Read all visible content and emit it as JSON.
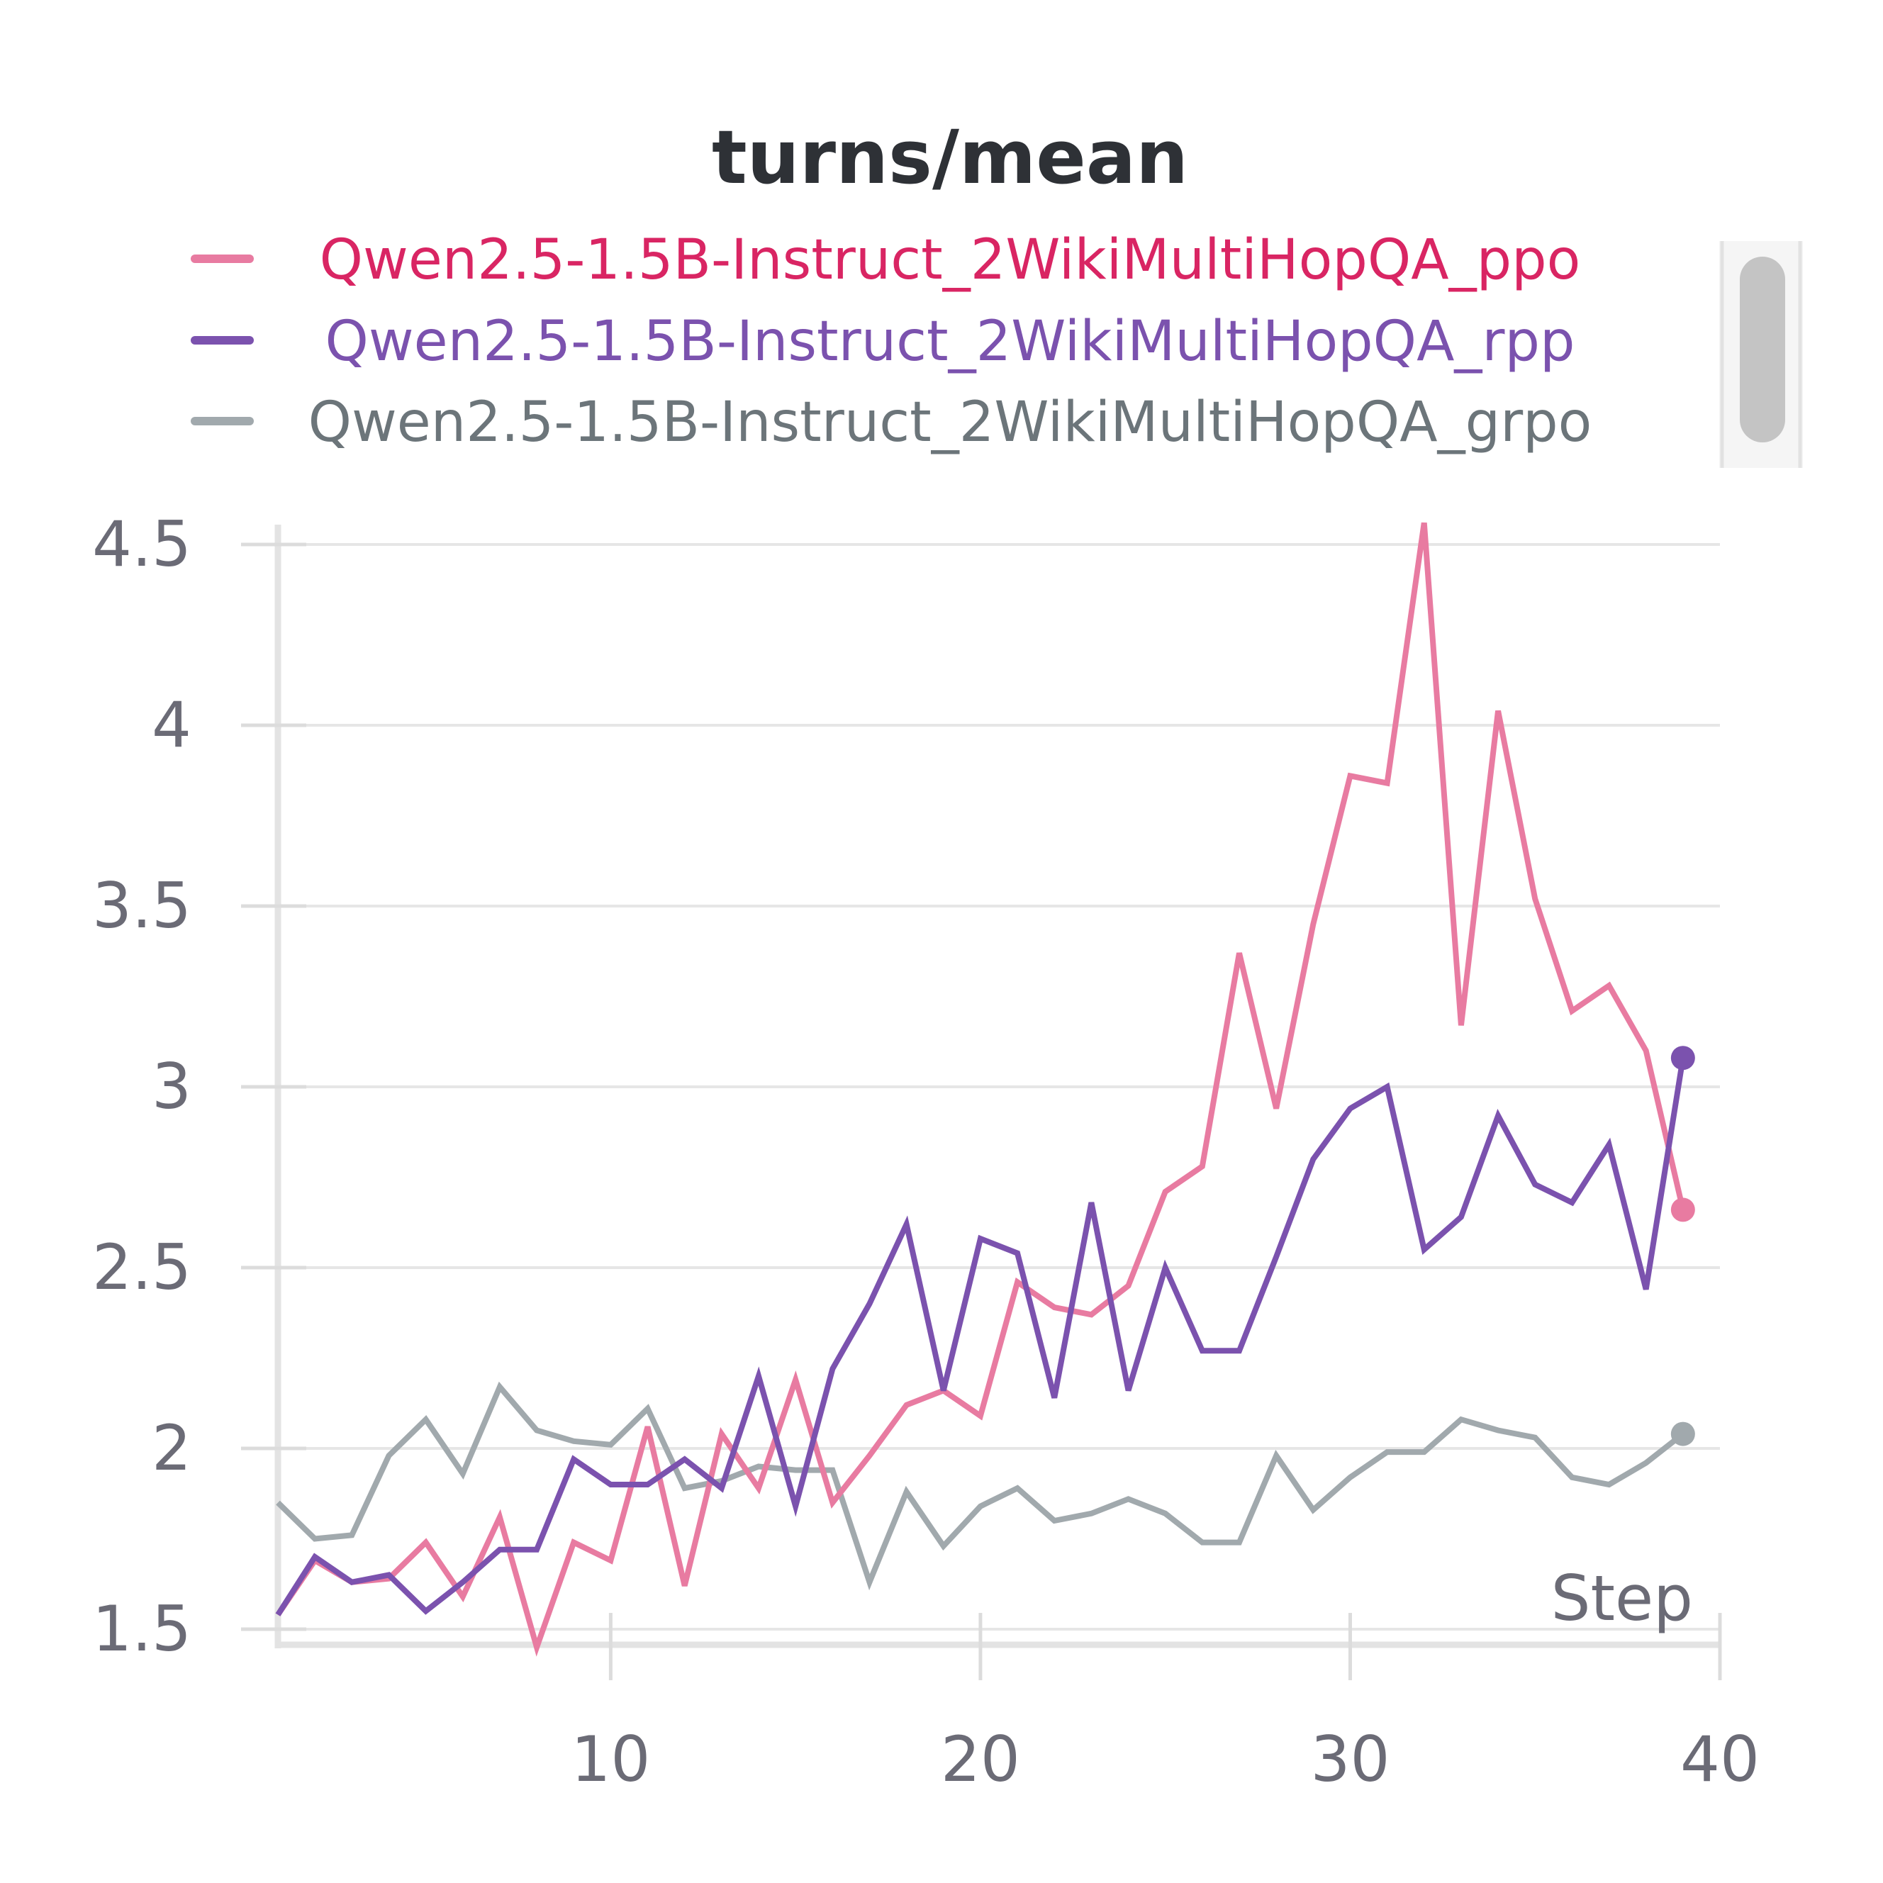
{
  "chart_data": {
    "type": "line",
    "title": "turns/mean",
    "xlabel": "Step",
    "ylabel": "",
    "xlim": [
      1,
      40
    ],
    "ylim": [
      1.5,
      4.5
    ],
    "xticks": [
      10,
      20,
      30,
      40
    ],
    "yticks": [
      1.5,
      2,
      2.5,
      3,
      3.5,
      4,
      4.5
    ],
    "ytick_labels": [
      "1.5",
      "2",
      "2.5",
      "3",
      "3.5",
      "4",
      "4.5"
    ],
    "xtick_labels": [
      "10",
      "20",
      "30",
      "40"
    ],
    "grid": true,
    "legend_position": "top",
    "x": [
      1,
      2,
      3,
      4,
      5,
      6,
      7,
      8,
      9,
      10,
      11,
      12,
      13,
      14,
      15,
      16,
      17,
      18,
      19,
      20,
      21,
      22,
      23,
      24,
      25,
      26,
      27,
      28,
      29,
      30,
      31,
      32,
      33,
      34,
      35,
      36,
      37,
      38,
      39
    ],
    "series": [
      {
        "name": "Qwen2.5-1.5B-Instruct_2WikiMultiHopQA_ppo",
        "color": "#e87ba1",
        "text_color": "#d92563",
        "values": [
          1.54,
          1.69,
          1.63,
          1.64,
          1.74,
          1.59,
          1.81,
          1.45,
          1.74,
          1.69,
          2.06,
          1.62,
          2.04,
          1.89,
          2.19,
          1.85,
          1.98,
          2.12,
          2.16,
          2.09,
          2.46,
          2.39,
          2.37,
          2.45,
          2.71,
          2.78,
          3.37,
          2.94,
          3.45,
          3.86,
          3.84,
          4.56,
          3.17,
          4.04,
          3.52,
          3.21,
          3.28,
          3.1,
          2.66
        ]
      },
      {
        "name": "Qwen2.5-1.5B-Instruct_2WikiMultiHopQA_rpp",
        "color": "#7b52ae",
        "text_color": "#7b52ae",
        "values": [
          1.54,
          1.7,
          1.63,
          1.65,
          1.55,
          1.63,
          1.72,
          1.72,
          1.97,
          1.9,
          1.9,
          1.97,
          1.89,
          2.2,
          1.84,
          2.22,
          2.4,
          2.62,
          2.16,
          2.58,
          2.54,
          2.14,
          2.68,
          2.16,
          2.5,
          2.27,
          2.27,
          2.53,
          2.8,
          2.94,
          3.0,
          2.55,
          2.64,
          2.92,
          2.73,
          2.68,
          2.84,
          2.44,
          3.08
        ]
      },
      {
        "name": "Qwen2.5-1.5B-Instruct_2WikiMultiHopQA_grpo",
        "color": "#a1a9ad",
        "text_color": "#6c757a",
        "values": [
          1.85,
          1.75,
          1.76,
          1.98,
          2.08,
          1.93,
          2.17,
          2.05,
          2.02,
          2.01,
          2.11,
          1.89,
          1.91,
          1.95,
          1.94,
          1.94,
          1.63,
          1.88,
          1.73,
          1.84,
          1.89,
          1.8,
          1.82,
          1.86,
          1.82,
          1.74,
          1.74,
          1.98,
          1.83,
          1.92,
          1.99,
          1.99,
          2.08,
          2.05,
          2.03,
          1.92,
          1.9,
          1.96,
          2.04
        ]
      }
    ]
  }
}
